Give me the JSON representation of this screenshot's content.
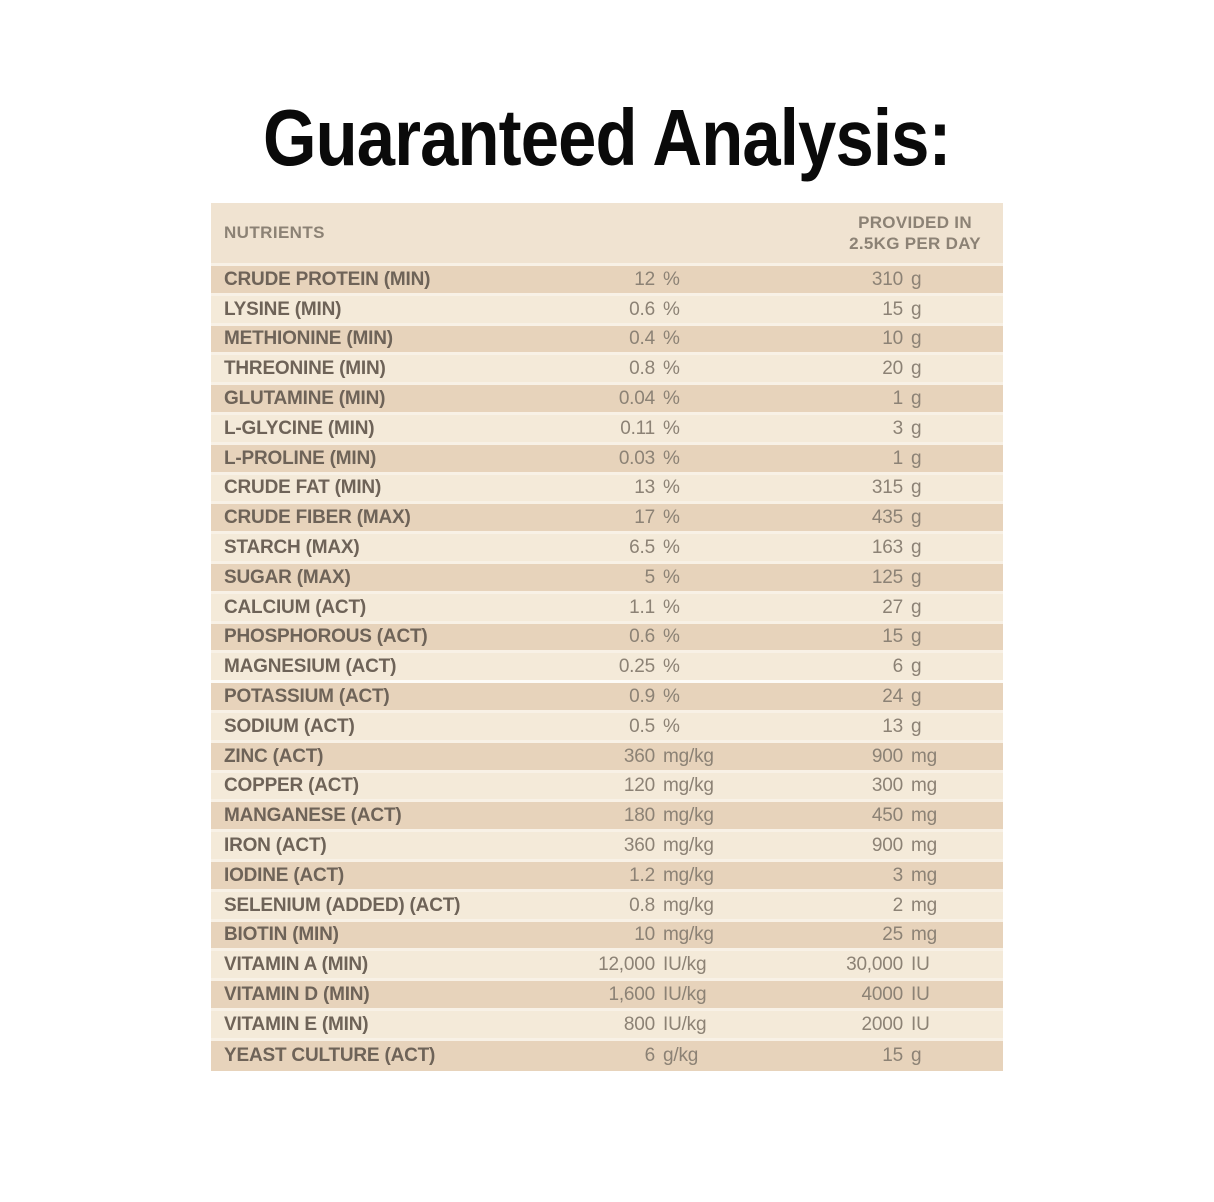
{
  "page": {
    "title": "Guaranteed Analysis:"
  },
  "colors": {
    "header_bg": "#f0e3d1",
    "row_dark": "#e7d3bb",
    "row_light": "#f4ead9",
    "separator": "#f8f1e6",
    "label_text": "#6e6358",
    "value_text": "#8c8275",
    "title_text": "#0a0a0a"
  },
  "table": {
    "header": {
      "nutrients_label": "NUTRIENTS",
      "provided_line1": "PROVIDED IN",
      "provided_line2": "2.5KG PER DAY"
    },
    "rows": [
      {
        "nutrient": "CRUDE PROTEIN (MIN)",
        "value": "12",
        "unit": "%",
        "daily_value": "310",
        "daily_unit": "g"
      },
      {
        "nutrient": "LYSINE (MIN)",
        "value": "0.6",
        "unit": "%",
        "daily_value": "15",
        "daily_unit": "g"
      },
      {
        "nutrient": "METHIONINE (MIN)",
        "value": "0.4",
        "unit": "%",
        "daily_value": "10",
        "daily_unit": "g"
      },
      {
        "nutrient": "THREONINE (MIN)",
        "value": "0.8",
        "unit": "%",
        "daily_value": "20",
        "daily_unit": "g"
      },
      {
        "nutrient": "GLUTAMINE (MIN)",
        "value": "0.04",
        "unit": "%",
        "daily_value": "1",
        "daily_unit": "g"
      },
      {
        "nutrient": "L-GLYCINE (MIN)",
        "value": "0.11",
        "unit": "%",
        "daily_value": "3",
        "daily_unit": "g"
      },
      {
        "nutrient": "L-PROLINE (MIN)",
        "value": "0.03",
        "unit": "%",
        "daily_value": "1",
        "daily_unit": "g"
      },
      {
        "nutrient": "CRUDE FAT (MIN)",
        "value": "13",
        "unit": "%",
        "daily_value": "315",
        "daily_unit": "g"
      },
      {
        "nutrient": "CRUDE FIBER (MAX)",
        "value": "17",
        "unit": "%",
        "daily_value": "435",
        "daily_unit": "g"
      },
      {
        "nutrient": "STARCH (MAX)",
        "value": "6.5",
        "unit": "%",
        "daily_value": "163",
        "daily_unit": "g"
      },
      {
        "nutrient": "SUGAR (MAX)",
        "value": "5",
        "unit": "%",
        "daily_value": "125",
        "daily_unit": "g"
      },
      {
        "nutrient": "CALCIUM (ACT)",
        "value": "1.1",
        "unit": "%",
        "daily_value": "27",
        "daily_unit": "g"
      },
      {
        "nutrient": "PHOSPHOROUS (ACT)",
        "value": "0.6",
        "unit": "%",
        "daily_value": "15",
        "daily_unit": "g"
      },
      {
        "nutrient": "MAGNESIUM (ACT)",
        "value": "0.25",
        "unit": "%",
        "daily_value": "6",
        "daily_unit": "g",
        "break_after": true
      },
      {
        "nutrient": "POTASSIUM (ACT)",
        "value": "0.9",
        "unit": "%",
        "daily_value": "24",
        "daily_unit": "g"
      },
      {
        "nutrient": "SODIUM (ACT)",
        "value": "0.5",
        "unit": "%",
        "daily_value": "13",
        "daily_unit": "g"
      },
      {
        "nutrient": "ZINC (ACT)",
        "value": "360",
        "unit": "mg/kg",
        "daily_value": "900",
        "daily_unit": "mg"
      },
      {
        "nutrient": "COPPER (ACT)",
        "value": "120",
        "unit": "mg/kg",
        "daily_value": "300",
        "daily_unit": "mg"
      },
      {
        "nutrient": "MANGANESE (ACT)",
        "value": "180",
        "unit": "mg/kg",
        "daily_value": "450",
        "daily_unit": "mg"
      },
      {
        "nutrient": "IRON (ACT)",
        "value": "360",
        "unit": "mg/kg",
        "daily_value": "900",
        "daily_unit": "mg"
      },
      {
        "nutrient": "IODINE (ACT)",
        "value": "1.2",
        "unit": "mg/kg",
        "daily_value": "3",
        "daily_unit": "mg"
      },
      {
        "nutrient": "SELENIUM (ADDED) (ACT)",
        "value": "0.8",
        "unit": "mg/kg",
        "daily_value": "2",
        "daily_unit": "mg"
      },
      {
        "nutrient": "BIOTIN (MIN)",
        "value": "10",
        "unit": "mg/kg",
        "daily_value": "25",
        "daily_unit": "mg"
      },
      {
        "nutrient": "VITAMIN A (MIN)",
        "value": "12,000",
        "unit": "IU/kg",
        "daily_value": "30,000",
        "daily_unit": "IU"
      },
      {
        "nutrient": "VITAMIN D (MIN)",
        "value": "1,600",
        "unit": "IU/kg",
        "daily_value": "4000",
        "daily_unit": "IU"
      },
      {
        "nutrient": "VITAMIN E (MIN)",
        "value": "800",
        "unit": "IU/kg",
        "daily_value": "2000",
        "daily_unit": "IU"
      },
      {
        "nutrient": "YEAST CULTURE (ACT)",
        "value": "6",
        "unit": "g/kg",
        "daily_value": "15",
        "daily_unit": "g"
      }
    ]
  }
}
